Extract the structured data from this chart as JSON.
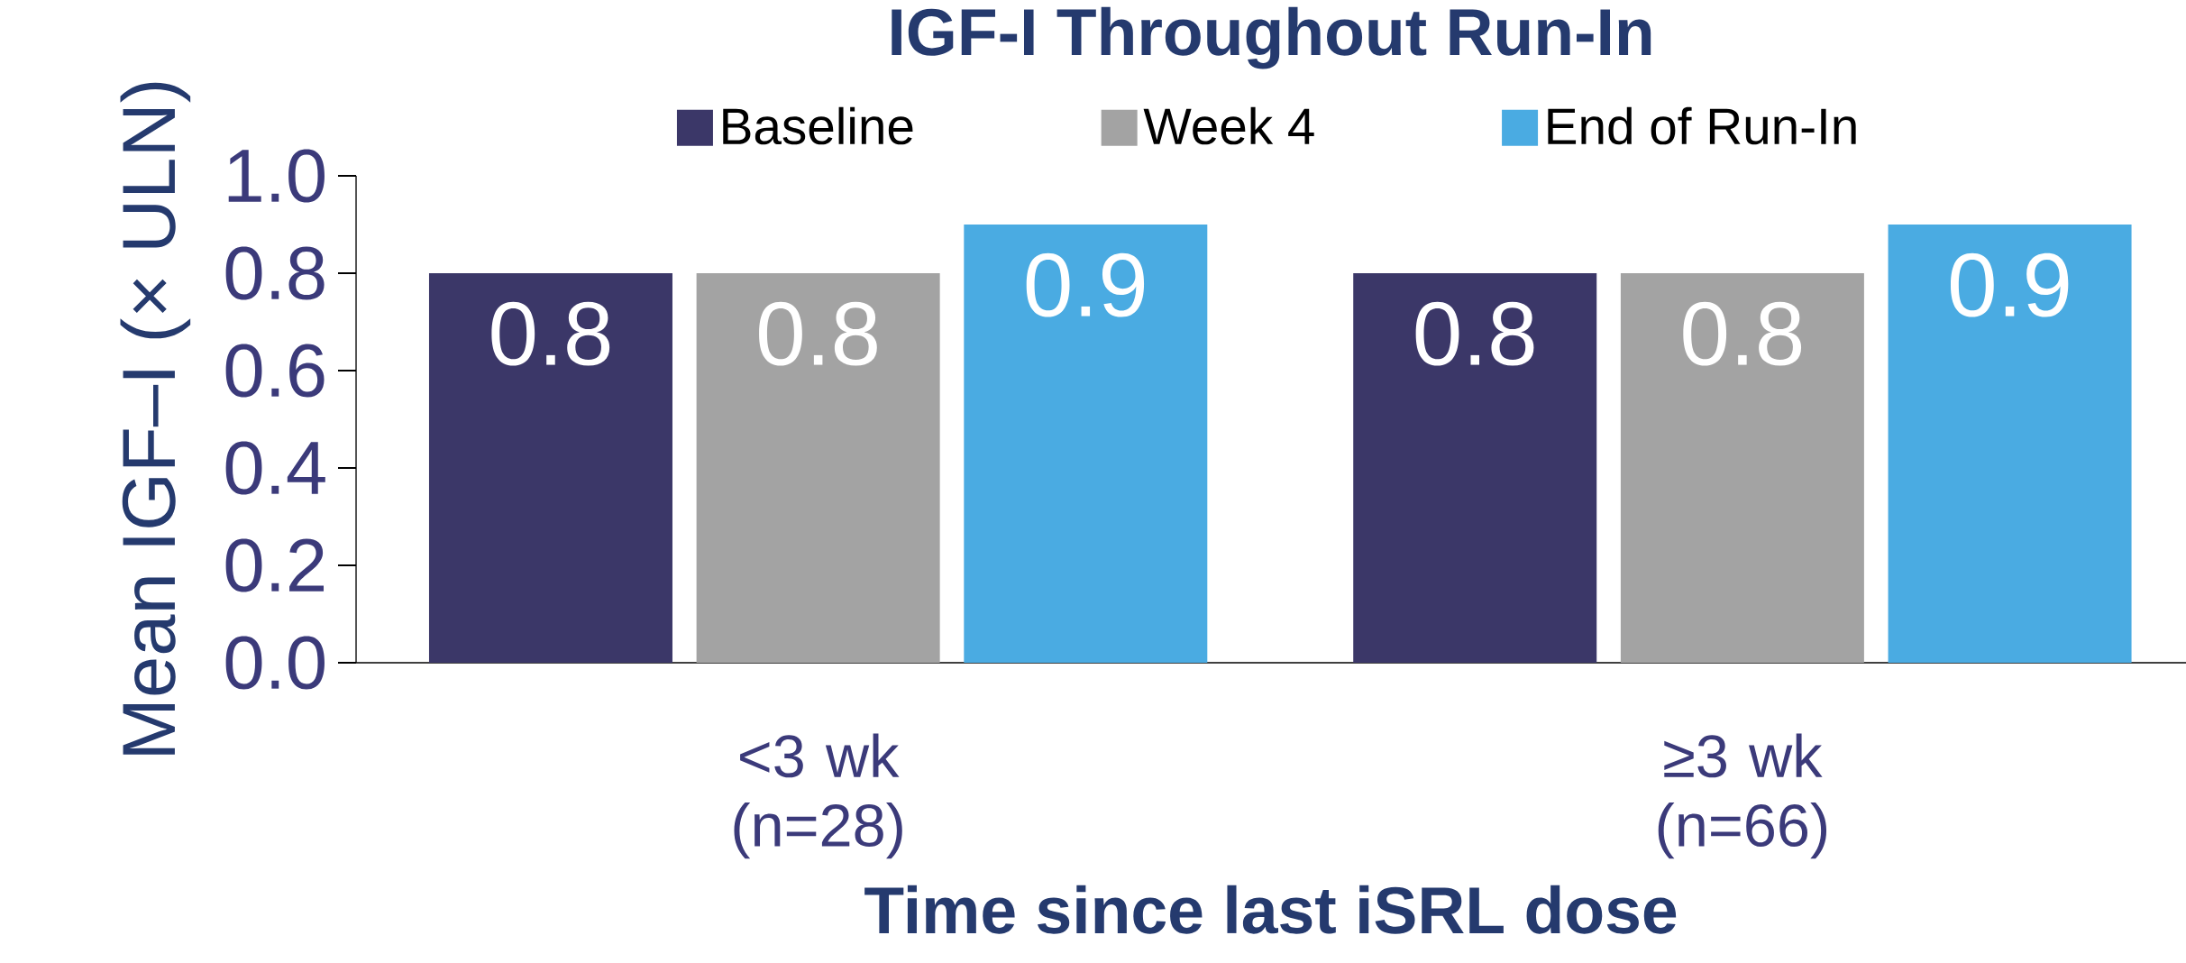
{
  "chart_data": {
    "type": "bar",
    "title": "IGF-I Throughout Run-In",
    "xlabel": "Time since last iSRL dose",
    "ylabel": "Mean IGF–I (× ULN)",
    "categories": [
      "<3 wk (n=28)",
      "≥3 wk (n=66)"
    ],
    "series": [
      {
        "name": "Baseline",
        "color": "#3b3768",
        "values": [
          0.8,
          0.8
        ]
      },
      {
        "name": "Week 4",
        "color": "#a3a3a3",
        "values": [
          0.8,
          0.8
        ]
      },
      {
        "name": "End of Run-In",
        "color": "#4aabe2",
        "values": [
          0.9,
          0.9
        ]
      }
    ],
    "ylim": [
      0,
      1.0
    ],
    "yticks": [
      {
        "value": 0,
        "label": "0.0"
      },
      {
        "value": 0.2,
        "label": "0.2"
      },
      {
        "value": 0.4,
        "label": "0.4"
      },
      {
        "value": 0.6,
        "label": "0.6"
      },
      {
        "value": 0.8,
        "label": "0.8"
      },
      {
        "value": 1.0,
        "label": "1.0"
      }
    ],
    "legend": "top",
    "data_labels": true
  }
}
